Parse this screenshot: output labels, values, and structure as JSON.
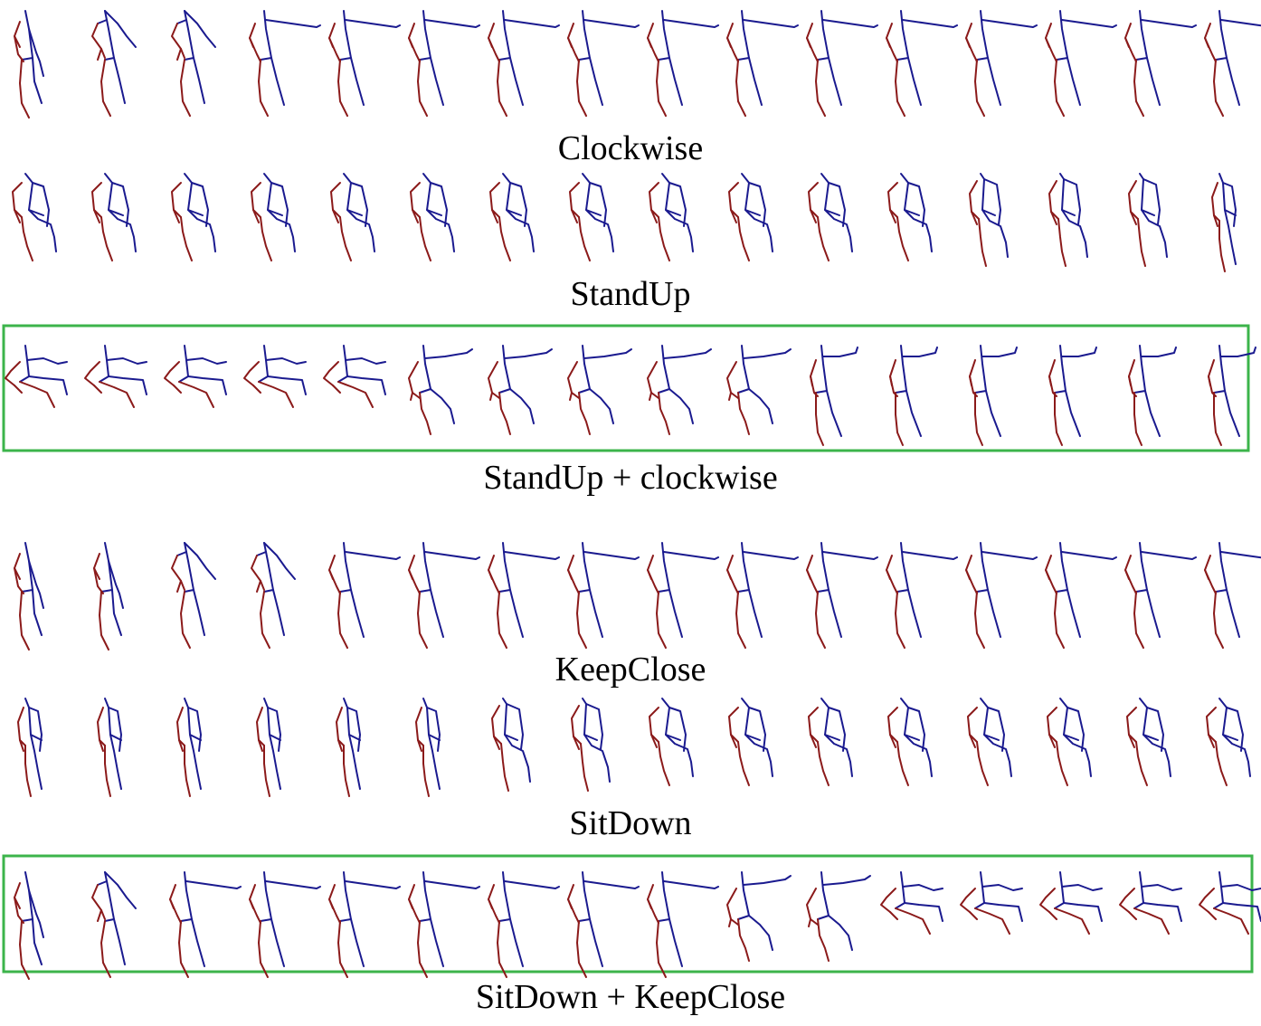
{
  "figure": {
    "colors": {
      "upper_body": "#1a1a8f",
      "lower_limb": "#8b1a1a",
      "highlight_border": "#3cb44b"
    },
    "rows": [
      {
        "caption": "Clockwise",
        "pose_sequence": [
          "neutral",
          "arm-lift",
          "arm-lift",
          "arm-out",
          "arm-out",
          "arm-out",
          "arm-out",
          "arm-out",
          "arm-out",
          "arm-out",
          "arm-out",
          "arm-out",
          "arm-out",
          "arm-out",
          "arm-out",
          "arm-out"
        ],
        "highlighted": false
      },
      {
        "caption": "StandUp",
        "pose_sequence": [
          "crouch",
          "crouch",
          "crouch",
          "crouch",
          "crouch",
          "crouch",
          "crouch",
          "crouch",
          "crouch",
          "crouch",
          "crouch",
          "crouch",
          "half-rise",
          "half-rise",
          "half-rise",
          "standing"
        ],
        "highlighted": false
      },
      {
        "caption": "StandUp + clockwise",
        "pose_sequence": [
          "seated-reach",
          "seated-reach",
          "seated-reach",
          "seated-reach",
          "seated-reach",
          "rise-reach",
          "rise-reach",
          "rise-reach",
          "rise-reach",
          "rise-reach",
          "stand-reach",
          "stand-reach",
          "stand-reach",
          "stand-reach",
          "stand-reach",
          "stand-reach"
        ],
        "highlighted": true
      },
      {
        "caption": "KeepClose",
        "pose_sequence": [
          "neutral",
          "neutral",
          "arm-lift",
          "arm-lift",
          "arm-out",
          "arm-out",
          "arm-out",
          "arm-out",
          "arm-out",
          "arm-out",
          "arm-out",
          "arm-out",
          "arm-out",
          "arm-out",
          "arm-out",
          "arm-out"
        ],
        "highlighted": false
      },
      {
        "caption": "SitDown",
        "pose_sequence": [
          "standing",
          "standing",
          "standing",
          "standing",
          "standing",
          "standing",
          "half-rise",
          "half-rise",
          "crouch",
          "crouch",
          "crouch",
          "crouch",
          "crouch",
          "crouch",
          "crouch",
          "crouch"
        ],
        "highlighted": false
      },
      {
        "caption": "SitDown + KeepClose",
        "pose_sequence": [
          "neutral",
          "arm-lift",
          "arm-out",
          "arm-out",
          "arm-out",
          "arm-out",
          "arm-out",
          "arm-out",
          "arm-out",
          "rise-reach",
          "rise-reach",
          "seated-reach",
          "seated-reach",
          "seated-reach",
          "seated-reach",
          "seated-reach"
        ],
        "highlighted": true
      }
    ]
  }
}
